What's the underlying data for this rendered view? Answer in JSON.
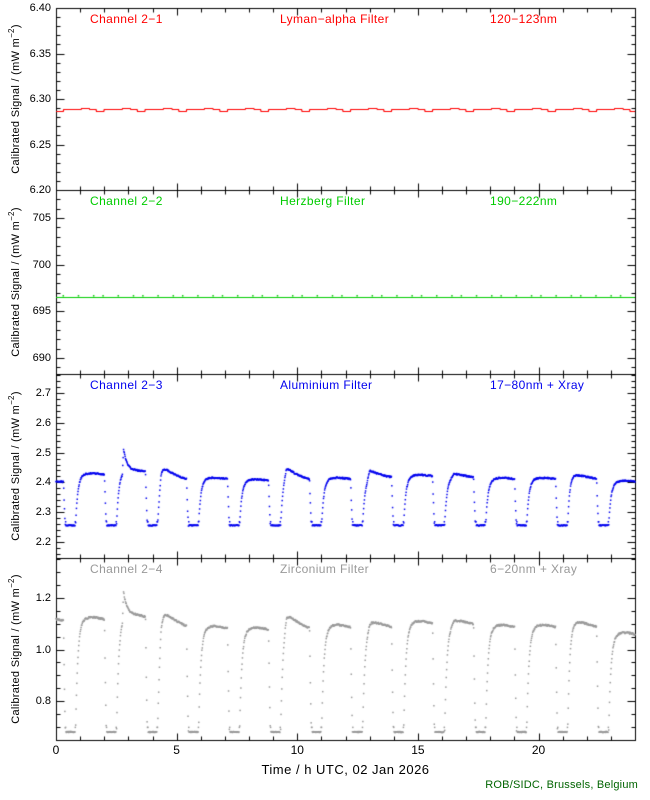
{
  "chart_data": {
    "type": "scatter",
    "description": "Four stacked time-series panels of calibrated radiometer signal vs time (LYRA-style daily plot)",
    "xlabel": "Time / h UTC, 02 Jan 2026",
    "xlim": [
      0,
      24
    ],
    "xtick_values": [
      0,
      5,
      10,
      15,
      20
    ],
    "xtick_labels": [
      "0",
      "5",
      "10",
      "15",
      "20"
    ],
    "x_minor_step": 1,
    "grid": false,
    "credit": "ROB/SIDC, Brussels, Belgium",
    "credit_color": "#006400",
    "orbit": {
      "period": 1.7,
      "first_eclipse_center": 0.6,
      "bottom_half_width": 0.21,
      "fall_duration": 0.08,
      "rise_tau": 0.09
    },
    "panels": [
      {
        "channel": "Channel 2−1",
        "filter": "Lyman−alpha Filter",
        "band": "120−123nm",
        "color": "#ff0000",
        "style": "line",
        "ylabel": {
          "prefix": "Calibrated Signal / (mW m",
          "sup": "−2",
          "suffix": ")"
        },
        "ylim": [
          6.2,
          6.4
        ],
        "ytick_values": [
          6.2,
          6.25,
          6.3,
          6.35,
          6.4
        ],
        "ytick_labels": [
          "6.20",
          "6.25",
          "6.30",
          "6.35",
          "6.40"
        ],
        "y_minor_step": 0.01,
        "line": {
          "baseline": 6.2885,
          "bump_up": 0.0015,
          "bump_up_window": [
            0.45,
            0.8
          ],
          "bump_down": 0.0012,
          "bump_down_window": [
            -0.62,
            -0.3
          ]
        }
      },
      {
        "channel": "Channel 2−2",
        "filter": "Herzberg Filter",
        "band": "190−222nm",
        "color": "#00cc00",
        "style": "line",
        "ylabel": {
          "prefix": "Calibrated Signal / (mW m",
          "sup": "−2",
          "suffix": ")"
        },
        "ylim": [
          688.3,
          708.0
        ],
        "ytick_values": [
          690,
          695,
          700,
          705
        ],
        "ytick_labels": [
          "690",
          "695",
          "700",
          "705"
        ],
        "y_minor_step": 1,
        "line": {
          "baseline": 696.5,
          "uptick": 0.18,
          "uptick_first": 0.3,
          "uptick_step": 0.55
        }
      },
      {
        "channel": "Channel 2−3",
        "filter": "Aluminium Filter",
        "band": "17−80nm + Xray",
        "color": "#0000ee",
        "style": "scatter",
        "ylabel": {
          "prefix": "Calibrated Signal / (mW m",
          "sup": "−2",
          "suffix": ")"
        },
        "ylim": [
          2.145,
          2.765
        ],
        "ytick_values": [
          2.2,
          2.3,
          2.4,
          2.5,
          2.6,
          2.7
        ],
        "ytick_labels": [
          "2.2",
          "2.3",
          "2.4",
          "2.5",
          "2.6",
          "2.7"
        ],
        "y_minor_step": 0.02,
        "scatter": {
          "bottom": 2.255,
          "hook": 0.012,
          "noise_plateau": 0.005,
          "noise_bottom": 0.003,
          "shape_amp": 0.01,
          "plateaus": [
            2.4,
            2.425,
            2.435,
            2.405,
            2.41,
            2.405,
            2.405,
            2.41,
            2.415,
            2.42,
            2.415,
            2.41,
            2.41,
            2.41,
            2.4
          ],
          "flares": [
            {
              "t": 2.8,
              "amp": 0.085,
              "rise": 0.05,
              "decay": 0.13
            },
            {
              "t": 4.35,
              "amp": 0.06,
              "rise": 0.1,
              "decay": 0.45
            },
            {
              "t": 9.55,
              "amp": 0.05,
              "rise": 0.22,
              "decay": 0.4
            },
            {
              "t": 13.0,
              "amp": 0.028,
              "rise": 0.12,
              "decay": 0.3
            },
            {
              "t": 16.5,
              "amp": 0.012,
              "rise": 0.15,
              "decay": 0.3
            },
            {
              "t": 21.25,
              "amp": 0.032,
              "rise": 0.12,
              "decay": 0.35
            }
          ]
        }
      },
      {
        "channel": "Channel 2−4",
        "filter": "Zirconium Filter",
        "band": "6−20nm + Xray",
        "color": "#999999",
        "style": "scatter",
        "ylabel": {
          "prefix": "Calibrated Signal / (mW m",
          "sup": "−2",
          "suffix": ")"
        },
        "ylim": [
          0.649,
          1.355
        ],
        "ytick_values": [
          0.8,
          1.0,
          1.2
        ],
        "ytick_labels": [
          "0.8",
          "1.0",
          "1.2"
        ],
        "y_minor_step": 0.05,
        "scatter": {
          "bottom": 0.68,
          "hook": 0.018,
          "noise_plateau": 0.007,
          "noise_bottom": 0.004,
          "shape_amp": 0.02,
          "plateaus": [
            1.11,
            1.115,
            1.125,
            1.08,
            1.08,
            1.075,
            1.075,
            1.085,
            1.085,
            1.1,
            1.095,
            1.085,
            1.085,
            1.085,
            1.055
          ],
          "flares": [
            {
              "t": 2.8,
              "amp": 0.115,
              "rise": 0.05,
              "decay": 0.13
            },
            {
              "t": 4.35,
              "amp": 0.09,
              "rise": 0.1,
              "decay": 0.45
            },
            {
              "t": 9.55,
              "amp": 0.07,
              "rise": 0.22,
              "decay": 0.4
            },
            {
              "t": 13.0,
              "amp": 0.022,
              "rise": 0.12,
              "decay": 0.3
            },
            {
              "t": 16.5,
              "amp": 0.012,
              "rise": 0.15,
              "decay": 0.3
            },
            {
              "t": 21.25,
              "amp": 0.045,
              "rise": 0.12,
              "decay": 0.35
            }
          ]
        }
      }
    ]
  }
}
